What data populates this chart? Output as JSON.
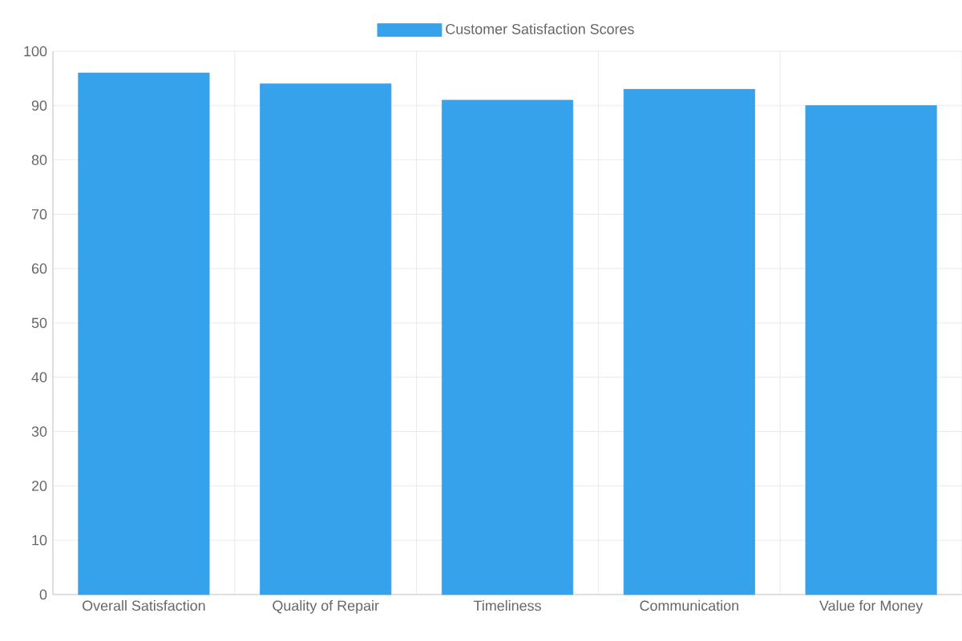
{
  "chart_data": {
    "type": "bar",
    "categories": [
      "Overall Satisfaction",
      "Quality of Repair",
      "Timeliness",
      "Communication",
      "Value for Money"
    ],
    "series": [
      {
        "name": "Customer Satisfaction Scores",
        "color": "#36a2eb",
        "values": [
          96,
          94,
          91,
          93,
          90
        ]
      }
    ],
    "ylim": [
      0,
      100
    ],
    "yticks": [
      0,
      10,
      20,
      30,
      40,
      50,
      60,
      70,
      80,
      90,
      100
    ],
    "grid": true,
    "legend": "top"
  }
}
